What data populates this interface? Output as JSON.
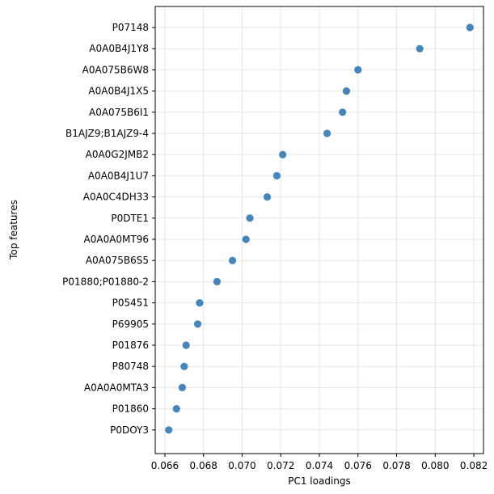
{
  "chart_data": {
    "type": "scatter",
    "title": "",
    "xlabel": "PC1 loadings",
    "ylabel": "Top features",
    "xlim": [
      0.0655,
      0.0825
    ],
    "x_ticks": [
      "0.066",
      "0.068",
      "0.070",
      "0.072",
      "0.074",
      "0.076",
      "0.078",
      "0.080",
      "0.082"
    ],
    "x_tick_values": [
      0.066,
      0.068,
      0.07,
      0.072,
      0.074,
      0.076,
      0.078,
      0.08,
      0.082
    ],
    "grid": true,
    "legend": "none",
    "marker_color": "#3a7fb8",
    "categories": [
      "P07148",
      "A0A0B4J1Y8",
      "A0A075B6W8",
      "A0A0B4J1X5",
      "A0A075B6I1",
      "B1AJZ9;B1AJZ9-4",
      "A0A0G2JMB2",
      "A0A0B4J1U7",
      "A0A0C4DH33",
      "P0DTE1",
      "A0A0A0MT96",
      "A0A075B6S5",
      "P01880;P01880-2",
      "P05451",
      "P69905",
      "P01876",
      "P80748",
      "A0A0A0MTA3",
      "P01860",
      "P0DOY3"
    ],
    "values": [
      0.0818,
      0.0792,
      0.076,
      0.0754,
      0.0752,
      0.0744,
      0.0721,
      0.0718,
      0.0713,
      0.0704,
      0.0702,
      0.0695,
      0.0687,
      0.0678,
      0.0677,
      0.0671,
      0.067,
      0.0669,
      0.0666,
      0.0662
    ]
  }
}
